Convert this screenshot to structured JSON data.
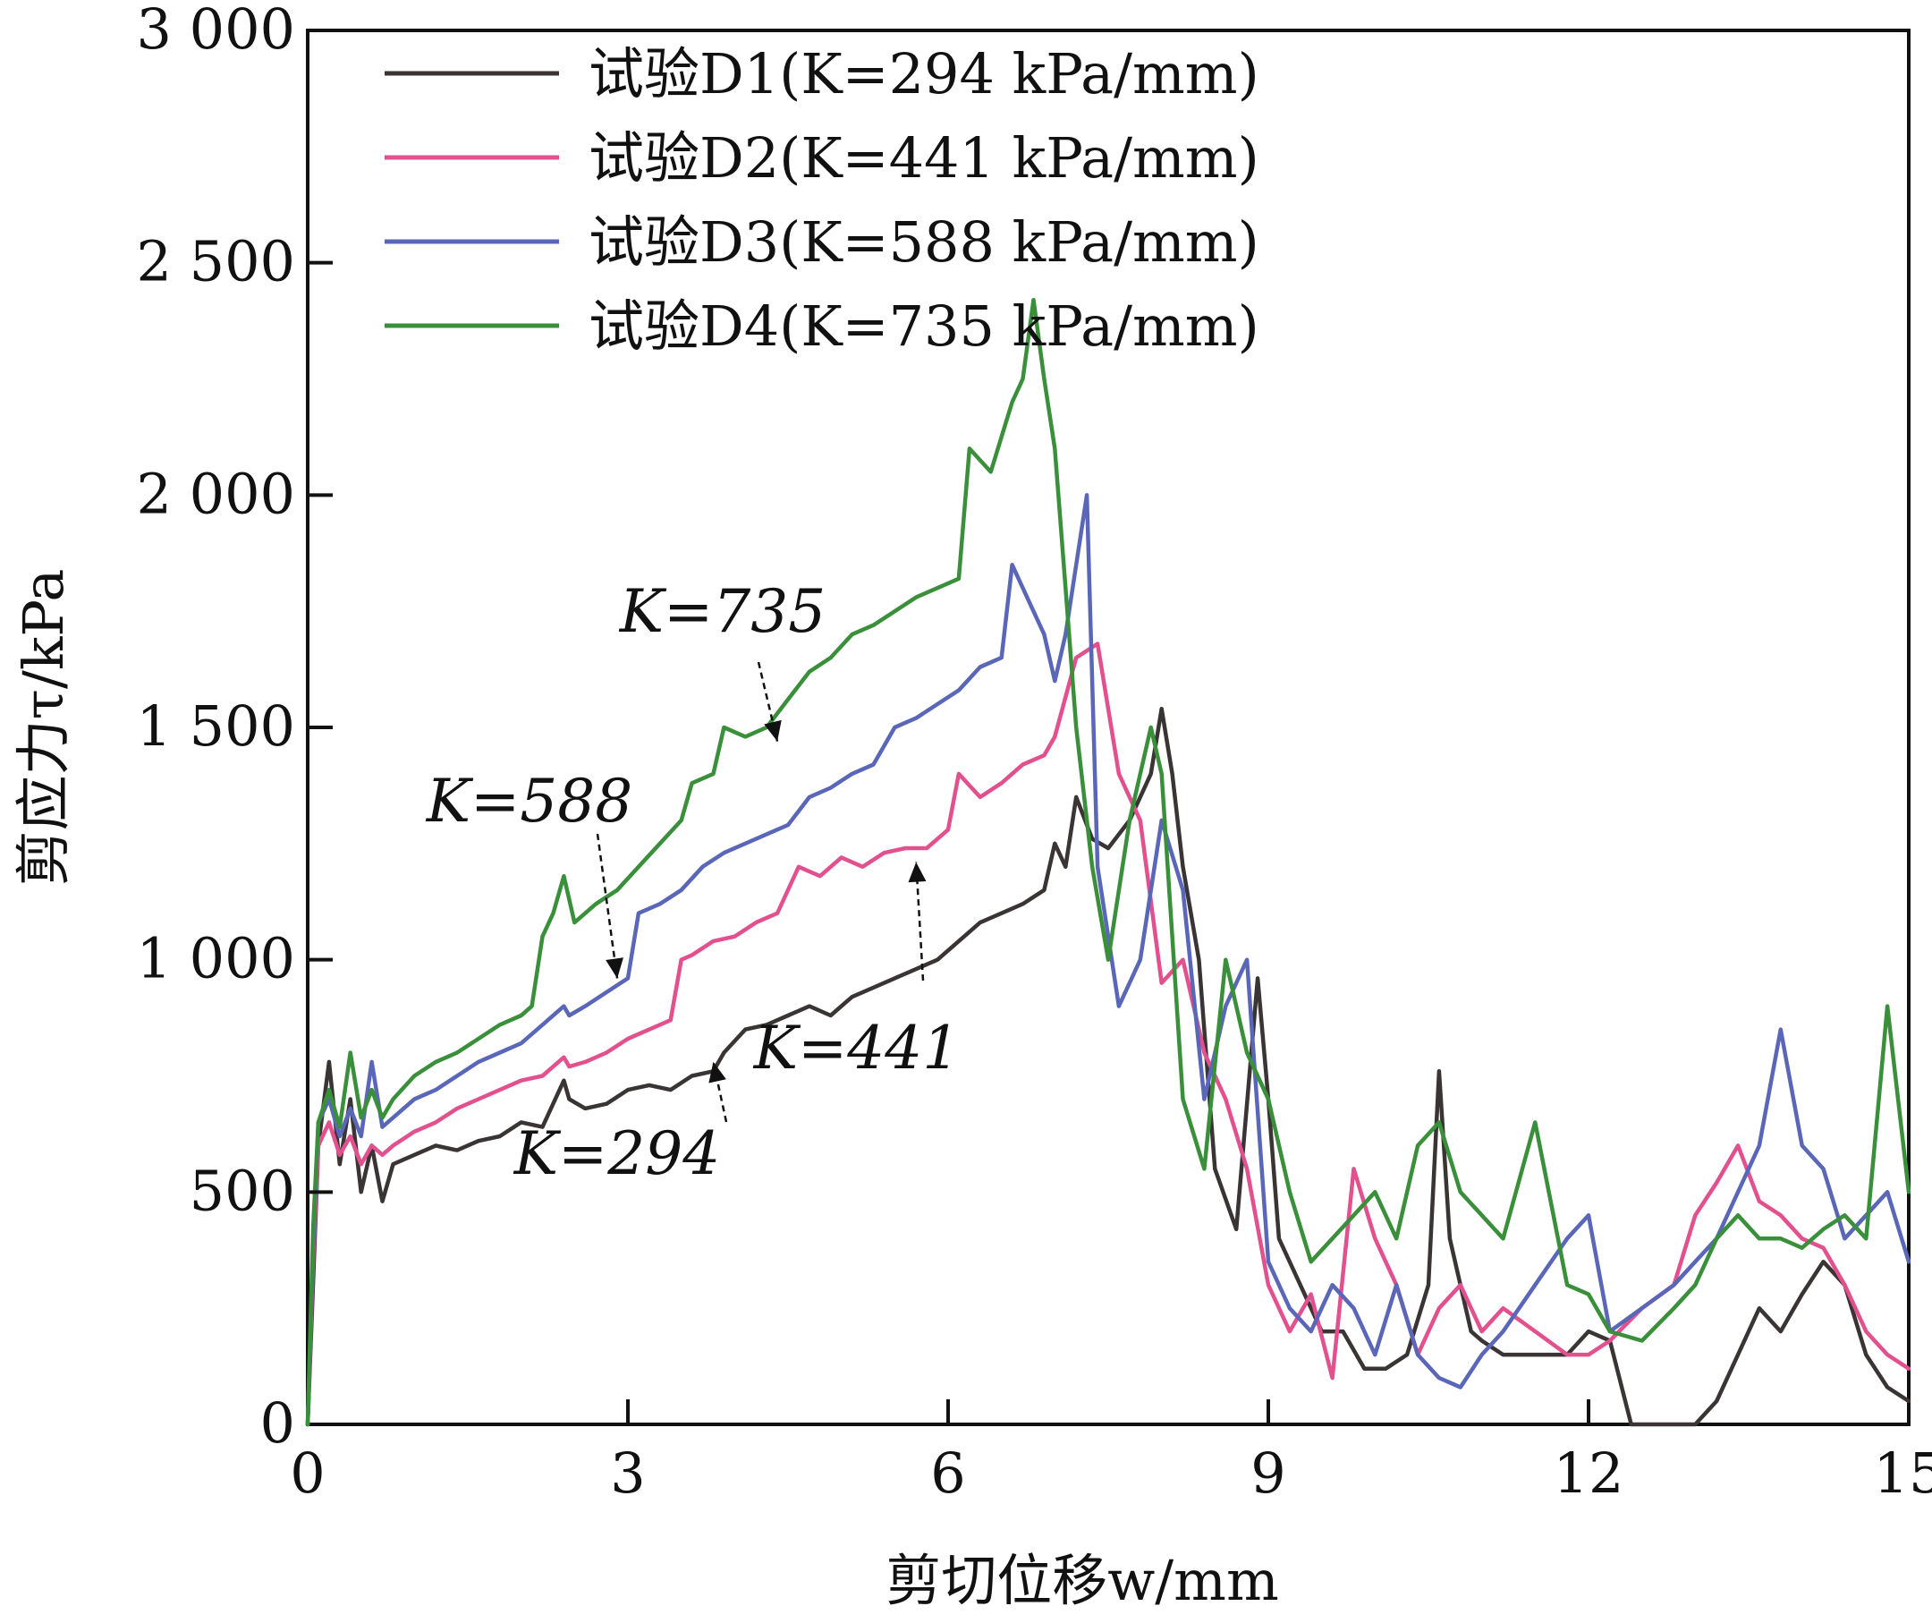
{
  "chart_data": {
    "type": "line",
    "title": "",
    "xlabel": "剪切位移w/mm",
    "ylabel": "剪应力τ/kPa",
    "xlim": [
      0,
      15
    ],
    "ylim": [
      0,
      3000
    ],
    "xticks": [
      0,
      3,
      6,
      9,
      12,
      15
    ],
    "xtick_labels": [
      "0",
      "3",
      "6",
      "9",
      "12",
      "15"
    ],
    "yticks": [
      0,
      500,
      1000,
      1500,
      2000,
      2500,
      3000
    ],
    "ytick_labels": [
      "0",
      "500",
      "1 000",
      "1 500",
      "2 000",
      "2 500",
      "3 000"
    ],
    "grid": false,
    "legend_position": "top-left",
    "series": [
      {
        "name": "试验D1(K=294 kPa/mm)",
        "color": "#3a3434",
        "x": [
          0,
          0.05,
          0.1,
          0.2,
          0.3,
          0.4,
          0.5,
          0.6,
          0.7,
          0.8,
          1.0,
          1.2,
          1.4,
          1.6,
          1.8,
          2.0,
          2.2,
          2.4,
          2.45,
          2.6,
          2.8,
          3.0,
          3.2,
          3.4,
          3.6,
          3.8,
          3.9,
          4.1,
          4.3,
          4.5,
          4.7,
          4.9,
          5.1,
          5.3,
          5.5,
          5.7,
          5.9,
          6.1,
          6.3,
          6.5,
          6.7,
          6.9,
          7.0,
          7.1,
          7.2,
          7.35,
          7.5,
          7.7,
          7.9,
          8.0,
          8.1,
          8.2,
          8.35,
          8.5,
          8.7,
          8.9,
          9.0,
          9.1,
          9.3,
          9.5,
          9.7,
          9.9,
          10.1,
          10.3,
          10.5,
          10.6,
          10.7,
          10.8,
          10.9,
          11.0,
          11.2,
          11.5,
          11.8,
          12.0,
          12.2,
          12.4,
          12.6,
          12.8,
          13.0,
          13.2,
          13.4,
          13.6,
          13.8,
          14.0,
          14.2,
          14.4,
          14.6,
          14.8,
          15.0
        ],
        "y": [
          0,
          300,
          600,
          780,
          560,
          700,
          500,
          600,
          480,
          560,
          580,
          600,
          590,
          610,
          620,
          650,
          640,
          740,
          700,
          680,
          690,
          720,
          730,
          720,
          750,
          760,
          800,
          850,
          860,
          880,
          900,
          880,
          920,
          940,
          960,
          980,
          1000,
          1040,
          1080,
          1100,
          1120,
          1150,
          1250,
          1200,
          1350,
          1260,
          1240,
          1300,
          1400,
          1540,
          1400,
          1200,
          1000,
          550,
          420,
          960,
          700,
          400,
          300,
          200,
          200,
          120,
          120,
          150,
          300,
          760,
          400,
          300,
          200,
          180,
          150,
          150,
          150,
          200,
          180,
          0,
          0,
          0,
          0,
          50,
          150,
          250,
          200,
          280,
          350,
          300,
          150,
          80,
          50
        ]
      },
      {
        "name": "试验D2(K=441 kPa/mm)",
        "color": "#e2508e",
        "x": [
          0,
          0.05,
          0.1,
          0.2,
          0.3,
          0.4,
          0.5,
          0.6,
          0.7,
          0.8,
          1.0,
          1.2,
          1.4,
          1.6,
          1.8,
          2.0,
          2.2,
          2.4,
          2.45,
          2.6,
          2.8,
          3.0,
          3.2,
          3.4,
          3.5,
          3.6,
          3.8,
          4.0,
          4.2,
          4.4,
          4.6,
          4.8,
          5.0,
          5.2,
          5.4,
          5.6,
          5.8,
          6.0,
          6.1,
          6.3,
          6.5,
          6.7,
          6.9,
          7.0,
          7.2,
          7.4,
          7.6,
          7.8,
          8.0,
          8.2,
          8.4,
          8.6,
          8.8,
          9.0,
          9.2,
          9.4,
          9.6,
          9.8,
          10.0,
          10.2,
          10.4,
          10.6,
          10.8,
          11.0,
          11.2,
          11.5,
          11.8,
          12.0,
          12.2,
          12.5,
          12.8,
          13.0,
          13.2,
          13.4,
          13.6,
          13.8,
          14.0,
          14.2,
          14.4,
          14.6,
          14.8,
          15.0
        ],
        "y": [
          0,
          350,
          600,
          650,
          580,
          620,
          560,
          600,
          580,
          600,
          630,
          650,
          680,
          700,
          720,
          740,
          750,
          790,
          770,
          780,
          800,
          830,
          850,
          870,
          1000,
          1010,
          1040,
          1050,
          1080,
          1100,
          1200,
          1180,
          1220,
          1200,
          1230,
          1240,
          1240,
          1280,
          1400,
          1350,
          1380,
          1420,
          1440,
          1480,
          1650,
          1680,
          1400,
          1300,
          950,
          1000,
          800,
          700,
          550,
          300,
          200,
          280,
          100,
          550,
          400,
          300,
          150,
          250,
          300,
          200,
          250,
          200,
          150,
          150,
          180,
          250,
          300,
          450,
          520,
          600,
          480,
          450,
          400,
          380,
          300,
          200,
          150,
          120
        ]
      },
      {
        "name": "试验D3(K=588 kPa/mm)",
        "color": "#5a67b8",
        "x": [
          0,
          0.05,
          0.1,
          0.2,
          0.3,
          0.4,
          0.5,
          0.6,
          0.7,
          0.8,
          1.0,
          1.2,
          1.4,
          1.6,
          1.8,
          2.0,
          2.2,
          2.4,
          2.45,
          2.6,
          2.8,
          3.0,
          3.1,
          3.3,
          3.5,
          3.7,
          3.9,
          4.1,
          4.3,
          4.5,
          4.7,
          4.9,
          5.1,
          5.3,
          5.5,
          5.7,
          5.9,
          6.1,
          6.3,
          6.5,
          6.6,
          6.7,
          6.9,
          7.0,
          7.1,
          7.3,
          7.4,
          7.6,
          7.8,
          8.0,
          8.2,
          8.4,
          8.6,
          8.8,
          9.0,
          9.2,
          9.4,
          9.6,
          9.8,
          10.0,
          10.2,
          10.4,
          10.6,
          10.8,
          11.0,
          11.2,
          11.5,
          11.8,
          12.0,
          12.2,
          12.5,
          12.8,
          13.0,
          13.2,
          13.4,
          13.6,
          13.8,
          14.0,
          14.2,
          14.4,
          14.6,
          14.8,
          15.0
        ],
        "y": [
          0,
          380,
          650,
          700,
          620,
          680,
          620,
          780,
          640,
          660,
          700,
          720,
          750,
          780,
          800,
          820,
          860,
          900,
          880,
          900,
          930,
          960,
          1100,
          1120,
          1150,
          1200,
          1230,
          1250,
          1270,
          1290,
          1350,
          1370,
          1400,
          1420,
          1500,
          1520,
          1550,
          1580,
          1630,
          1650,
          1850,
          1800,
          1700,
          1600,
          1700,
          2000,
          1200,
          900,
          1000,
          1300,
          1150,
          700,
          900,
          1000,
          350,
          250,
          200,
          300,
          250,
          150,
          300,
          150,
          100,
          80,
          150,
          200,
          300,
          400,
          450,
          200,
          250,
          300,
          350,
          400,
          500,
          600,
          850,
          600,
          550,
          400,
          450,
          500,
          350
        ]
      },
      {
        "name": "试验D4(K=735 kPa/mm)",
        "color": "#3a8f3a",
        "x": [
          0,
          0.05,
          0.1,
          0.2,
          0.3,
          0.4,
          0.5,
          0.6,
          0.7,
          0.8,
          1.0,
          1.2,
          1.4,
          1.6,
          1.8,
          2.0,
          2.1,
          2.2,
          2.3,
          2.4,
          2.5,
          2.7,
          2.9,
          3.1,
          3.3,
          3.5,
          3.6,
          3.8,
          3.9,
          4.1,
          4.3,
          4.5,
          4.7,
          4.9,
          5.1,
          5.3,
          5.5,
          5.7,
          5.9,
          6.1,
          6.2,
          6.4,
          6.6,
          6.7,
          6.8,
          6.9,
          7.0,
          7.1,
          7.2,
          7.35,
          7.5,
          7.7,
          7.9,
          8.0,
          8.2,
          8.4,
          8.6,
          8.8,
          9.0,
          9.2,
          9.4,
          9.6,
          9.8,
          10.0,
          10.2,
          10.4,
          10.6,
          10.8,
          11.0,
          11.2,
          11.5,
          11.8,
          12.0,
          12.2,
          12.5,
          12.8,
          13.0,
          13.2,
          13.4,
          13.6,
          13.8,
          14.0,
          14.2,
          14.4,
          14.6,
          14.8,
          15.0
        ],
        "y": [
          0,
          420,
          650,
          720,
          640,
          800,
          660,
          720,
          660,
          700,
          750,
          780,
          800,
          830,
          860,
          880,
          900,
          1050,
          1100,
          1180,
          1080,
          1120,
          1150,
          1200,
          1250,
          1300,
          1380,
          1400,
          1500,
          1480,
          1500,
          1560,
          1620,
          1650,
          1700,
          1720,
          1750,
          1780,
          1800,
          1820,
          2100,
          2050,
          2200,
          2250,
          2420,
          2250,
          2100,
          1800,
          1500,
          1200,
          1000,
          1300,
          1500,
          1400,
          700,
          550,
          1000,
          800,
          700,
          500,
          350,
          400,
          450,
          500,
          400,
          600,
          650,
          500,
          450,
          400,
          650,
          300,
          280,
          200,
          180,
          250,
          300,
          400,
          450,
          400,
          400,
          380,
          420,
          450,
          400,
          900,
          500
        ]
      }
    ],
    "annotations": [
      {
        "text": "K=735",
        "target": [
          4.4,
          1470
        ]
      },
      {
        "text": "K=588",
        "target": [
          2.9,
          960
        ]
      },
      {
        "text": "K=441",
        "target": [
          5.7,
          1210
        ]
      },
      {
        "text": "K=294",
        "target": [
          3.8,
          780
        ]
      }
    ]
  }
}
